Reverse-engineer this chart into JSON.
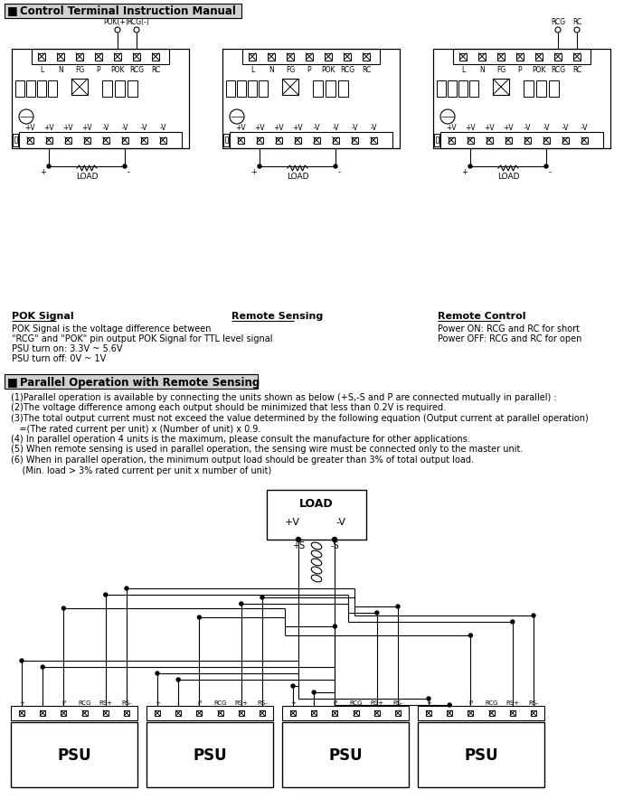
{
  "title1": "Control Terminal Instruction Manual",
  "title2": "Parallel Operation with Remote Sensing",
  "pok_signal_title": "POK Signal",
  "pok_signal_lines": [
    "POK Signal is the voltage difference between",
    "\"RCG\" and \"POK\" pin output POK Signal for TTL level signal",
    "PSU turn on: 3.3V ~ 5.6V",
    "PSU turn off: 0V ~ 1V"
  ],
  "remote_sensing_title": "Remote Sensing",
  "remote_control_title": "Remote Control",
  "remote_control_lines": [
    "Power ON: RCG and RC for short",
    "Power OFF: RCG and RC for open"
  ],
  "parallel_notes": [
    "(1)Parallel operation is available by connecting the units shown as below (+S,-S and P are connected mutually in parallel) :",
    "(2)The voltage difference among each output should be minimized that less than 0.2V is required.",
    "(3)The total output current must not exceed the value determined by the following equation (Output current at parallel operation)",
    "   =(The rated current per unit) x (Number of unit) x 0.9.",
    "(4) In parallel operation 4 units is the maximum, please consult the manufacture for other applications.",
    "(5) When remote sensing is used in parallel operation, the sensing wire must be connected only to the master unit.",
    "(6) When in parallel operation, the minimum output load should be greater than 3% of total output load.",
    "    (Min. load > 3% rated current per unit x number of unit)"
  ],
  "top_term_labels": [
    "L",
    "N",
    "FG",
    "P",
    "POK",
    "RCG",
    "RC"
  ],
  "bot_term_labels": [
    "+V",
    "+V",
    "+V",
    "+V",
    "-V",
    "-V",
    "-V",
    "-V"
  ],
  "psu_term_labels": [
    "+",
    "-",
    "P",
    "RCG",
    "RS+",
    "RS-"
  ]
}
